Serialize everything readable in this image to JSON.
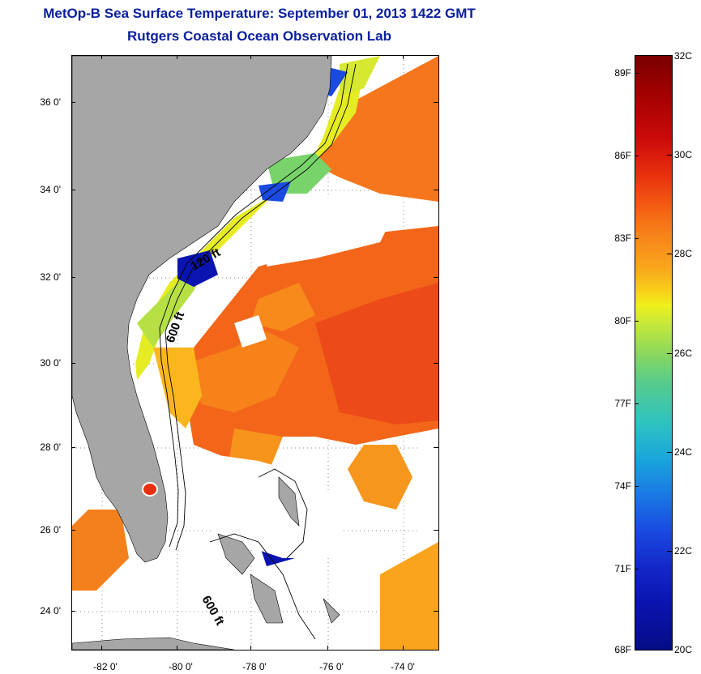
{
  "header": {
    "title": "MetOp-B Sea Surface Temperature:  September 01, 2013 1422 GMT",
    "subtitle": "Rutgers Coastal Ocean Observation Lab"
  },
  "map": {
    "lat_labels": [
      "36 0'",
      "34 0'",
      "32 0'",
      "30 0'",
      "28 0'",
      "26 0'",
      "24 0'"
    ],
    "lon_labels": [
      "-82 0'",
      "-80 0'",
      "-78 0'",
      "-76 0'",
      "-74 0'"
    ],
    "contour_labels": [
      "120 ft",
      "600 ft",
      "600 ft"
    ],
    "land_color": "#a6a6a6",
    "cloud_color": "#ffffff"
  },
  "colorbar": {
    "fahrenheit_labels": [
      "89F",
      "86F",
      "83F",
      "80F",
      "77F",
      "74F",
      "71F",
      "68F"
    ],
    "celsius_labels": [
      "32C",
      "30C",
      "28C",
      "26C",
      "24C",
      "22C",
      "20C"
    ],
    "range_c": [
      20,
      32
    ],
    "range_f": [
      68,
      89.6
    ],
    "colormap": "jet"
  }
}
